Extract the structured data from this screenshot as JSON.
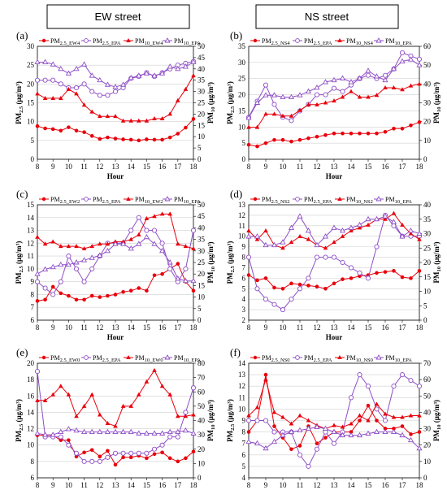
{
  "headers": {
    "left": "EW street",
    "right": "NS street"
  },
  "colors": {
    "red": "#e8000b",
    "purple": "#8e4ec6"
  },
  "chart_data": [
    {
      "type": "line",
      "panel": "(a)",
      "x": [
        8,
        8.5,
        9,
        9.5,
        10,
        10.5,
        11,
        11.5,
        12,
        12.5,
        13,
        13.5,
        14,
        14.5,
        15,
        15.5,
        16,
        16.5,
        17,
        17.5,
        18
      ],
      "xlim": [
        8,
        18
      ],
      "xticks": [
        8,
        9,
        10,
        11,
        12,
        13,
        14,
        15,
        16,
        17,
        18
      ],
      "ylim": [
        0,
        30
      ],
      "yticks": [
        0,
        5,
        10,
        15,
        20,
        25,
        30
      ],
      "y2lim": [
        0,
        50
      ],
      "y2ticks": [
        0,
        5,
        10,
        15,
        20,
        25,
        30,
        35,
        40,
        45,
        50
      ],
      "ylabel": "PM2.5 (μg/m³)",
      "y2label": "PM10 (μg/m³)",
      "xlabel": "Hour",
      "legend": [
        "PM2.5_EW4",
        "PM2.5_EPA",
        "PM10_EW4",
        "PM10_EPA"
      ],
      "series": [
        {
          "name": "PM2.5_EW4",
          "axis": "left",
          "color": "red",
          "marker": "circle",
          "values": [
            8.8,
            8.2,
            8.0,
            7.6,
            8.5,
            7.6,
            7.2,
            6.2,
            5.4,
            5.8,
            5.5,
            5.3,
            5.2,
            5.0,
            5.3,
            5.2,
            5.2,
            5.8,
            6.8,
            8.4,
            10.7
          ]
        },
        {
          "name": "PM2.5_EPA",
          "axis": "left",
          "color": "purple",
          "marker": "circle",
          "values": [
            21,
            21,
            21,
            20,
            19,
            19,
            20,
            18,
            17,
            17,
            18,
            19,
            21.5,
            22,
            23,
            22,
            23,
            24,
            25,
            25.5,
            26
          ]
        },
        {
          "name": "PM10_EW4",
          "axis": "right",
          "color": "red",
          "marker": "triangle",
          "values": [
            29,
            27,
            27,
            27,
            31,
            29,
            24,
            21,
            19,
            19,
            19,
            17,
            17,
            17,
            17,
            18,
            18,
            20,
            26,
            31,
            37
          ]
        },
        {
          "name": "PM10_EPA",
          "axis": "right",
          "color": "purple",
          "marker": "triangle",
          "values": [
            43,
            43,
            42,
            40,
            38,
            40,
            42,
            37,
            35,
            33,
            32,
            33,
            36,
            37,
            38,
            37,
            38,
            41,
            40,
            41,
            43
          ]
        }
      ]
    },
    {
      "type": "line",
      "panel": "(b)",
      "x": [
        8,
        8.5,
        9,
        9.5,
        10,
        10.5,
        11,
        11.5,
        12,
        12.5,
        13,
        13.5,
        14,
        14.5,
        15,
        15.5,
        16,
        16.5,
        17,
        17.5,
        18
      ],
      "xlim": [
        8,
        18
      ],
      "xticks": [
        8,
        9,
        10,
        11,
        12,
        13,
        14,
        15,
        16,
        17,
        18
      ],
      "ylim": [
        0,
        35
      ],
      "yticks": [
        0,
        5,
        10,
        15,
        20,
        25,
        30,
        35
      ],
      "y2lim": [
        0,
        60
      ],
      "y2ticks": [
        0,
        10,
        20,
        30,
        40,
        50,
        60
      ],
      "ylabel": "PM2.5 (μg/m³)",
      "y2label": "PM10 (μg/m³)",
      "xlabel": "Hour",
      "legend": [
        "PM2.5_NS4",
        "PM2.5_EPA",
        "PM10_NS4",
        "PM10_EPA"
      ],
      "series": [
        {
          "name": "PM2.5_NS4",
          "axis": "left",
          "color": "red",
          "marker": "circle",
          "values": [
            4.5,
            4.0,
            5.0,
            6.0,
            6.0,
            5.5,
            6.0,
            6.5,
            7.0,
            7.5,
            8.0,
            8.0,
            8.0,
            8.0,
            8.0,
            8.0,
            8.5,
            9.5,
            9.5,
            10.5,
            11.5
          ]
        },
        {
          "name": "PM2.5_EPA",
          "axis": "left",
          "color": "purple",
          "marker": "circle",
          "values": [
            13,
            18,
            23,
            17,
            13,
            12,
            15,
            17,
            20,
            20,
            22,
            21,
            23,
            25,
            26,
            25,
            26,
            28,
            33,
            32,
            31
          ]
        },
        {
          "name": "PM10_NS4",
          "axis": "right",
          "color": "red",
          "marker": "triangle",
          "values": [
            17,
            17,
            24,
            24,
            23,
            23,
            26,
            29,
            29,
            30,
            31,
            33,
            36,
            33,
            33,
            34,
            38,
            38,
            37,
            39,
            40
          ]
        },
        {
          "name": "PM10_EPA",
          "axis": "right",
          "color": "purple",
          "marker": "triangle",
          "values": [
            22,
            30,
            34,
            34,
            33,
            33,
            34,
            36,
            38,
            41,
            42,
            43,
            41,
            43,
            47,
            44,
            42,
            48,
            52,
            53,
            50
          ]
        }
      ]
    },
    {
      "type": "line",
      "panel": "(c)",
      "x": [
        8,
        8.5,
        9,
        9.5,
        10,
        10.5,
        11,
        11.5,
        12,
        12.5,
        13,
        13.5,
        14,
        14.5,
        15,
        15.5,
        16,
        16.5,
        17,
        17.5,
        18
      ],
      "xlim": [
        8,
        18
      ],
      "xticks": [
        8,
        9,
        10,
        11,
        12,
        13,
        14,
        15,
        16,
        17,
        18
      ],
      "ylim": [
        6,
        15
      ],
      "yticks": [
        6,
        7,
        8,
        9,
        10,
        11,
        12,
        13,
        14,
        15
      ],
      "y2lim": [
        0,
        50
      ],
      "y2ticks": [
        0,
        5,
        10,
        15,
        20,
        25,
        30,
        35,
        40,
        45,
        50
      ],
      "ylabel": "PM2.5 (μg/m³)",
      "y2label": "PM10 (μg/m³)",
      "xlabel": "Hour",
      "legend": [
        "PM2.5_EW2",
        "PM2.5_EPA",
        "PM10_EW2",
        "PM10_EPA"
      ],
      "series": [
        {
          "name": "PM2.5_EW2",
          "axis": "left",
          "color": "red",
          "marker": "circle",
          "values": [
            7.5,
            7.6,
            8.6,
            8.1,
            7.9,
            7.6,
            7.6,
            7.9,
            7.8,
            7.9,
            8.0,
            8.2,
            8.3,
            8.5,
            8.3,
            9.5,
            9.6,
            10.0,
            10.4,
            9.0,
            8.3
          ]
        },
        {
          "name": "PM2.5_EPA",
          "axis": "left",
          "color": "purple",
          "marker": "circle",
          "values": [
            9,
            8.5,
            8,
            9,
            11,
            10,
            9,
            10,
            11,
            12,
            12,
            12,
            13,
            14,
            13,
            13,
            12,
            10,
            9,
            10,
            13
          ]
        },
        {
          "name": "PM10_EW2",
          "axis": "right",
          "color": "red",
          "marker": "triangle",
          "values": [
            36,
            33,
            34,
            32,
            32,
            32,
            31,
            32,
            33,
            33,
            34,
            34,
            35,
            37,
            44,
            45,
            46,
            46,
            33,
            32,
            31
          ]
        },
        {
          "name": "PM10_EPA",
          "axis": "right",
          "color": "purple",
          "marker": "triangle",
          "values": [
            20,
            22,
            23,
            24,
            24,
            25,
            26,
            27,
            28,
            30,
            33,
            33,
            31,
            33,
            36,
            33,
            30,
            25,
            18,
            17,
            17
          ]
        }
      ]
    },
    {
      "type": "line",
      "panel": "(d)",
      "x": [
        8,
        8.5,
        9,
        9.5,
        10,
        10.5,
        11,
        11.5,
        12,
        12.5,
        13,
        13.5,
        14,
        14.5,
        15,
        15.5,
        16,
        16.5,
        17,
        17.5,
        18
      ],
      "xlim": [
        8,
        18
      ],
      "xticks": [
        8,
        9,
        10,
        11,
        12,
        13,
        14,
        15,
        16,
        17,
        18
      ],
      "ylim": [
        2,
        13
      ],
      "yticks": [
        2,
        3,
        4,
        5,
        6,
        7,
        8,
        9,
        10,
        11,
        12,
        13
      ],
      "y2lim": [
        0,
        40
      ],
      "y2ticks": [
        0,
        5,
        10,
        15,
        20,
        25,
        30,
        35,
        40
      ],
      "ylabel": "PM2.5 (μg/m³)",
      "y2label": "PM10 (μg/m³)",
      "xlabel": "Hour",
      "legend": [
        "PM2.5_NS2",
        "PM2.5_EPA",
        "PM10_NS2",
        "PM10_EPA"
      ],
      "series": [
        {
          "name": "PM2.5_NS2",
          "axis": "left",
          "color": "red",
          "marker": "circle",
          "values": [
            6.3,
            5.8,
            6.0,
            5.1,
            5.0,
            5.5,
            5.4,
            5.3,
            5.2,
            5.0,
            5.5,
            5.9,
            6.0,
            6.2,
            6.3,
            6.5,
            6.6,
            6.7,
            6.1,
            6.0,
            6.7
          ]
        },
        {
          "name": "PM2.5_EPA",
          "axis": "left",
          "color": "purple",
          "marker": "circle",
          "values": [
            8,
            5,
            4,
            3.5,
            3,
            4,
            5,
            6,
            8,
            8,
            8,
            7.5,
            7,
            6.5,
            6,
            9,
            12,
            11,
            10,
            10,
            10
          ]
        },
        {
          "name": "PM10_NS2",
          "axis": "right",
          "color": "red",
          "marker": "triangle",
          "values": [
            31,
            28,
            31,
            26,
            25,
            27,
            29,
            28,
            26,
            25,
            27,
            29,
            31,
            32,
            33,
            35,
            35,
            37,
            33,
            30,
            28
          ]
        },
        {
          "name": "PM10_EPA",
          "axis": "right",
          "color": "purple",
          "marker": "triangle",
          "values": [
            29,
            29,
            26,
            26,
            27,
            32,
            36,
            31,
            26,
            29,
            32,
            31,
            32,
            33,
            35,
            35,
            36,
            34,
            29,
            31,
            30
          ]
        }
      ]
    },
    {
      "type": "line",
      "panel": "(e)",
      "x": [
        8,
        8.5,
        9,
        9.5,
        10,
        10.5,
        11,
        11.5,
        12,
        12.5,
        13,
        13.5,
        14,
        14.5,
        15,
        15.5,
        16,
        16.5,
        17,
        17.5,
        18
      ],
      "xlim": [
        8,
        18
      ],
      "xticks": [
        8,
        9,
        10,
        11,
        12,
        13,
        14,
        15,
        16,
        17,
        18
      ],
      "ylim": [
        6,
        20
      ],
      "yticks": [
        6,
        8,
        10,
        12,
        14,
        16,
        18,
        20
      ],
      "y2lim": [
        0,
        80
      ],
      "y2ticks": [
        0,
        10,
        20,
        30,
        40,
        50,
        60,
        70,
        80
      ],
      "ylabel": "PM2.5 (μg/m³)",
      "y2label": "PM10 (μg/m³)",
      "xlabel": "Hour",
      "legend": [
        "PM2.5_EW0",
        "PM2.5_EPA",
        "PM10_EW0",
        "PM10_EPA"
      ],
      "series": [
        {
          "name": "PM2.5_EW0",
          "axis": "left",
          "color": "red",
          "marker": "circle",
          "values": [
            11.2,
            11.2,
            11.2,
            10.6,
            10.6,
            8.6,
            9.1,
            9.4,
            8.6,
            9.3,
            7.6,
            8.5,
            8.5,
            8.7,
            8.4,
            8.9,
            9.1,
            8.4,
            8.0,
            8.4,
            9.2
          ]
        },
        {
          "name": "PM2.5_EPA",
          "axis": "left",
          "color": "purple",
          "marker": "circle",
          "values": [
            19,
            11,
            11,
            11,
            10,
            9,
            8,
            8,
            8,
            8.5,
            9,
            9,
            9,
            9,
            9,
            9.5,
            10,
            11,
            11,
            14,
            17
          ]
        },
        {
          "name": "PM10_EW0",
          "axis": "right",
          "color": "red",
          "marker": "triangle",
          "values": [
            54,
            54,
            58,
            64,
            58,
            43,
            50,
            58,
            44,
            38,
            36,
            50,
            50,
            58,
            67,
            75,
            64,
            58,
            43,
            43,
            44
          ]
        },
        {
          "name": "PM10_EPA",
          "axis": "right",
          "color": "purple",
          "marker": "triangle",
          "values": [
            31,
            30,
            30,
            32,
            34,
            33,
            32,
            32,
            32,
            32,
            32,
            32,
            32,
            31,
            31,
            31,
            31,
            32,
            32,
            33,
            31
          ]
        }
      ]
    },
    {
      "type": "line",
      "panel": "(f)",
      "x": [
        8,
        8.5,
        9,
        9.5,
        10,
        10.5,
        11,
        11.5,
        12,
        12.5,
        13,
        13.5,
        14,
        14.5,
        15,
        15.5,
        16,
        16.5,
        17,
        17.5,
        18
      ],
      "xlim": [
        8,
        18
      ],
      "xticks": [
        8,
        9,
        10,
        11,
        12,
        13,
        14,
        15,
        16,
        17,
        18
      ],
      "ylim": [
        4,
        14
      ],
      "yticks": [
        4,
        5,
        6,
        7,
        8,
        9,
        10,
        11,
        12,
        13,
        14
      ],
      "y2lim": [
        0,
        70
      ],
      "y2ticks": [
        0,
        10,
        20,
        30,
        40,
        50,
        60,
        70
      ],
      "ylabel": "PM2.5 (μg/m³)",
      "y2label": "PM10 (μg/m³)",
      "xlabel": "Hour",
      "legend": [
        "PM2.5_NS0",
        "PM2.5_EPA",
        "PM10_NS0",
        "PM10_EPA"
      ],
      "series": [
        {
          "name": "PM2.5_NS0",
          "axis": "left",
          "color": "red",
          "marker": "circle",
          "values": [
            8.0,
            9.0,
            13.0,
            8.5,
            7.5,
            6.5,
            6.8,
            8.5,
            7.0,
            7.5,
            8.0,
            8.0,
            8.0,
            9.0,
            10.3,
            9.0,
            8.3,
            8.3,
            8.5,
            7.8,
            8.0
          ]
        },
        {
          "name": "PM2.5_EPA",
          "axis": "left",
          "color": "purple",
          "marker": "circle",
          "values": [
            9.0,
            9.0,
            9.0,
            8.0,
            8.0,
            8.0,
            6.0,
            5.0,
            6.5,
            8.0,
            7.0,
            8.0,
            11.0,
            13.0,
            12.0,
            10.0,
            9.0,
            12.0,
            13.0,
            12.5,
            12.0
          ]
        },
        {
          "name": "PM10_NS0",
          "axis": "right",
          "color": "red",
          "marker": "triangle",
          "values": [
            38,
            43,
            60,
            40,
            37,
            33,
            38,
            35,
            32,
            30,
            32,
            31,
            33,
            38,
            35,
            45,
            39,
            37,
            37,
            38,
            38
          ]
        },
        {
          "name": "PM10_EPA",
          "axis": "right",
          "color": "purple",
          "marker": "triangle",
          "values": [
            22,
            21,
            18,
            22,
            26,
            28,
            29,
            30,
            31,
            30,
            28,
            26,
            26,
            26,
            27,
            28,
            28,
            28,
            26,
            23,
            18
          ]
        }
      ]
    }
  ]
}
